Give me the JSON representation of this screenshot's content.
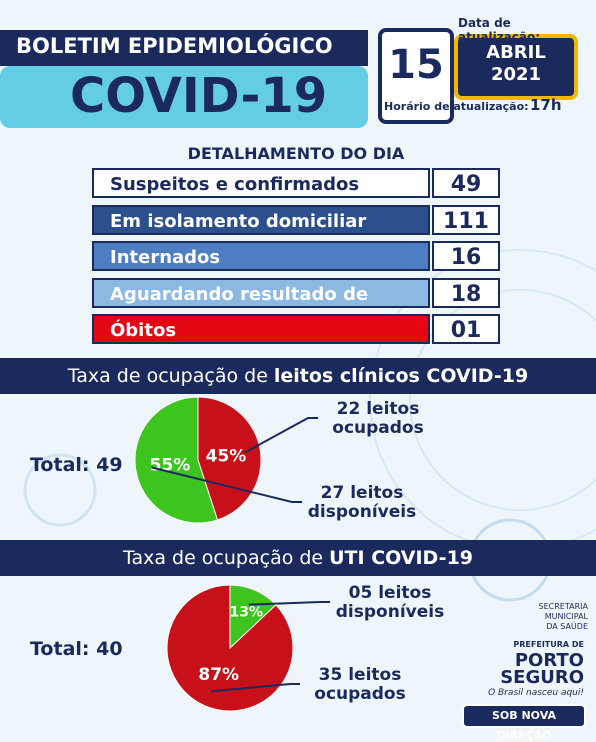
{
  "header": {
    "title": "BOLETIM EPIDEMIOLÓGICO",
    "subtitle": "COVID-19",
    "update_label": "Data de atualização:",
    "day": "15",
    "month": "ABRIL",
    "year": "2021",
    "time_label": "Horário de atualização:",
    "time": "17h"
  },
  "detail": {
    "title": "DETALHAMENTO DO DIA",
    "rows": [
      [
        "Suspeitos e confirmados",
        "49"
      ],
      [
        "Em isolamento domiciliar",
        "111"
      ],
      [
        "Internados",
        "16"
      ],
      [
        "Aguardando resultado de exame",
        "18"
      ],
      [
        "Óbitos",
        "01"
      ]
    ]
  },
  "charts": [
    {
      "type": "pie",
      "title_lead": "Taxa de ocupação de",
      "title_bold": "leitos clínicos COVID-19",
      "total_label": "Total: 49",
      "categories": [
        "22 leitos ocupados",
        "27 leitos disponíveis"
      ],
      "values": [
        45,
        55
      ],
      "value_labels": [
        "45%",
        "55%"
      ],
      "colors": [
        "#c8101a",
        "#3ec41f"
      ]
    },
    {
      "type": "pie",
      "title_lead": "Taxa de ocupação de",
      "title_bold": "UTI COVID-19",
      "total_label": "Total: 40",
      "categories": [
        "05 leitos disponíveis",
        "35 leitos ocupados"
      ],
      "values": [
        13,
        87
      ],
      "value_labels": [
        "13%",
        "87%"
      ],
      "colors": [
        "#3ec41f",
        "#c8101a"
      ]
    }
  ],
  "footer": {
    "secretaria": "SECRETARIA MUNICIPAL DA SAÚDE",
    "prefeitura": "PREFEITURA DE",
    "city": "PORTO SEGURO",
    "slogan": "O Brasil nasceu aqui!",
    "badge": "SOB NOVA DIREÇÃO"
  }
}
